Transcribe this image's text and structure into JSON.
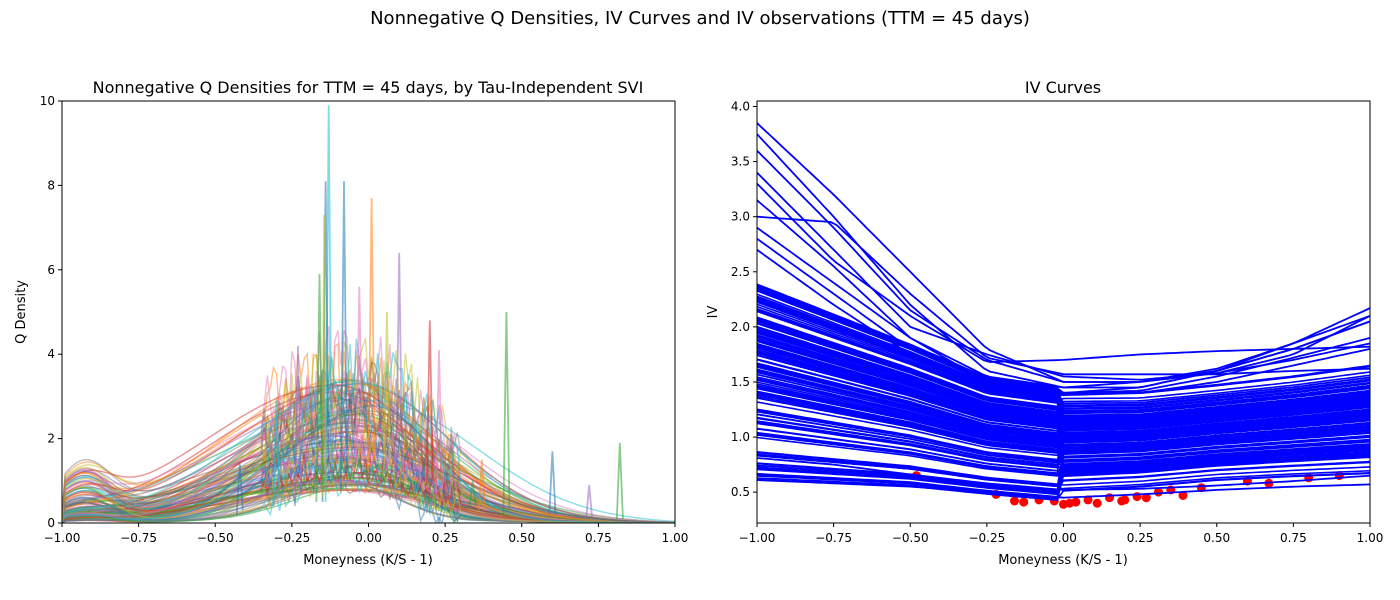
{
  "figure": {
    "suptitle": "Nonnegative Q Densities, IV Curves and IV observations (TTM = 45 days)"
  },
  "chart_data": [
    {
      "type": "line",
      "title": "Nonnegative Q Densities for TTM = 45 days, by Tau-Independent SVI",
      "xlabel": "Moneyness (K/S - 1)",
      "ylabel": "Q Density",
      "xlim": [
        -1.0,
        1.0
      ],
      "ylim": [
        0,
        10
      ],
      "xticks": [
        -1.0,
        -0.75,
        -0.5,
        -0.25,
        0.0,
        0.25,
        0.5,
        0.75,
        1.0
      ],
      "xtick_labels": [
        "−1.00",
        "−0.75",
        "−0.50",
        "−0.25",
        "0.00",
        "0.25",
        "0.50",
        "0.75",
        "1.00"
      ],
      "yticks": [
        0,
        2,
        4,
        6,
        8,
        10
      ],
      "ytick_labels": [
        "0",
        "2",
        "4",
        "6",
        "8",
        "10"
      ],
      "grid": false,
      "legend": "none",
      "line_alpha": 0.5,
      "palette": [
        "#1f77b4",
        "#ff7f0e",
        "#2ca02c",
        "#d62728",
        "#9467bd",
        "#8c564b",
        "#e377c2",
        "#7f7f7f",
        "#bcbd22",
        "#17becf"
      ],
      "smooth_series_count": 120,
      "smooth_curve_model": "skewed bell in moneyness; peak location ≈ -0.12 to 0.02, peak height ≈ 0.7 to 3.4, left-tail bump near -0.95 for some series",
      "spike_series": [
        {
          "name": "",
          "x": [
            -0.14,
            -0.13,
            -0.12
          ],
          "y": [
            0.5,
            9.9,
            1.0
          ],
          "color": "#17becf"
        },
        {
          "name": "",
          "x": [
            -0.15,
            -0.14,
            -0.13
          ],
          "y": [
            0.5,
            8.1,
            1.0
          ],
          "color": "#1f77b4"
        },
        {
          "name": "",
          "x": [
            -0.09,
            -0.08,
            -0.07
          ],
          "y": [
            0.8,
            8.1,
            1.2
          ],
          "color": "#1f77b4"
        },
        {
          "name": "",
          "x": [
            0.0,
            0.01,
            0.02
          ],
          "y": [
            1.2,
            7.7,
            1.5
          ],
          "color": "#ff7f0e"
        },
        {
          "name": "",
          "x": [
            -0.15,
            -0.145,
            -0.14
          ],
          "y": [
            0.6,
            7.3,
            0.9
          ],
          "color": "#bcbd22"
        },
        {
          "name": "",
          "x": [
            0.09,
            0.1,
            0.11
          ],
          "y": [
            1.0,
            6.4,
            1.2
          ],
          "color": "#9467bd"
        },
        {
          "name": "",
          "x": [
            -0.17,
            -0.16,
            -0.15
          ],
          "y": [
            0.5,
            5.9,
            0.9
          ],
          "color": "#2ca02c"
        },
        {
          "name": "",
          "x": [
            0.44,
            0.45,
            0.46
          ],
          "y": [
            0.2,
            5.0,
            0.3
          ],
          "color": "#2ca02c"
        },
        {
          "name": "",
          "x": [
            0.19,
            0.2,
            0.21
          ],
          "y": [
            0.9,
            4.8,
            1.0
          ],
          "color": "#d62728"
        },
        {
          "name": "",
          "x": [
            -0.24,
            -0.23,
            -0.22
          ],
          "y": [
            0.4,
            4.2,
            0.7
          ],
          "color": "#9467bd"
        },
        {
          "name": "",
          "x": [
            0.22,
            0.23,
            0.24
          ],
          "y": [
            0.7,
            4.1,
            0.8
          ],
          "color": "#e377c2"
        },
        {
          "name": "",
          "x": [
            -0.31,
            -0.3,
            -0.29
          ],
          "y": [
            0.4,
            2.9,
            0.6
          ],
          "color": "#17becf"
        },
        {
          "name": "",
          "x": [
            0.59,
            0.6,
            0.61
          ],
          "y": [
            0.2,
            1.7,
            0.2
          ],
          "color": "#1f77b4"
        },
        {
          "name": "",
          "x": [
            0.81,
            0.82,
            0.83
          ],
          "y": [
            0.1,
            1.9,
            0.1
          ],
          "color": "#2ca02c"
        },
        {
          "name": "",
          "x": [
            0.71,
            0.72,
            0.73
          ],
          "y": [
            0.1,
            0.9,
            0.1
          ],
          "color": "#9467bd"
        },
        {
          "name": "",
          "x": [
            -0.43,
            -0.42,
            -0.41
          ],
          "y": [
            0.2,
            1.4,
            0.3
          ],
          "color": "#1f77b4"
        },
        {
          "name": "",
          "x": [
            0.33,
            0.34,
            0.35
          ],
          "y": [
            0.4,
            1.0,
            0.4
          ],
          "color": "#2ca02c"
        },
        {
          "name": "",
          "x": [
            0.36,
            0.37,
            0.38
          ],
          "y": [
            0.3,
            1.5,
            0.3
          ],
          "color": "#ff7f0e"
        },
        {
          "name": "",
          "x": [
            -0.04,
            -0.03,
            -0.02
          ],
          "y": [
            1.4,
            5.6,
            1.6
          ],
          "color": "#e377c2"
        },
        {
          "name": "",
          "x": [
            0.05,
            0.06,
            0.07
          ],
          "y": [
            1.2,
            5.0,
            1.3
          ],
          "color": "#bcbd22"
        }
      ]
    },
    {
      "type": "line",
      "title": "IV Curves",
      "xlabel": "Moneyness (K/S - 1)",
      "ylabel": "IV",
      "xlim": [
        -1.0,
        1.0
      ],
      "ylim": [
        0.22,
        4.05
      ],
      "xticks": [
        -1.0,
        -0.75,
        -0.5,
        -0.25,
        0.0,
        0.25,
        0.5,
        0.75,
        1.0
      ],
      "xtick_labels": [
        "−1.00",
        "−0.75",
        "−0.50",
        "−0.25",
        "0.00",
        "0.25",
        "0.50",
        "0.75",
        "1.00"
      ],
      "yticks": [
        0.5,
        1.0,
        1.5,
        2.0,
        2.5,
        3.0,
        3.5,
        4.0
      ],
      "ytick_labels": [
        "0.5",
        "1.0",
        "1.5",
        "2.0",
        "2.5",
        "3.0",
        "3.5",
        "4.0"
      ],
      "grid": false,
      "legend": "none",
      "curve_color": "#0000ff",
      "observation_color": "#ff0000",
      "band_lower": {
        "x": [
          -1.0,
          -0.5,
          -0.25,
          0.0,
          0.25,
          0.5,
          0.75,
          1.0
        ],
        "y": [
          0.61,
          0.55,
          0.48,
          0.42,
          0.46,
          0.52,
          0.55,
          0.57
        ]
      },
      "band_upper": {
        "x": [
          -1.0,
          -0.5,
          -0.25,
          0.0,
          0.25,
          0.5,
          0.75,
          1.0
        ],
        "y": [
          2.4,
          1.85,
          1.55,
          1.45,
          1.45,
          1.52,
          1.6,
          1.7
        ]
      },
      "highlight_curves": [
        {
          "x": [
            -1.0,
            -0.75,
            -0.5,
            -0.25,
            0.0,
            0.25,
            0.5,
            0.75,
            1.0
          ],
          "y": [
            3.85,
            3.2,
            2.5,
            1.8,
            1.5,
            1.5,
            1.58,
            1.75,
            2.1
          ]
        },
        {
          "x": [
            -1.0,
            -0.75,
            -0.5,
            -0.25,
            0.0,
            0.25,
            0.5,
            0.75,
            1.0
          ],
          "y": [
            3.75,
            3.0,
            2.2,
            1.6,
            1.45,
            1.45,
            1.6,
            1.85,
            2.17
          ]
        },
        {
          "x": [
            -1.0,
            -0.75,
            -0.5,
            -0.25,
            0.0,
            0.25,
            0.5,
            0.75,
            1.0
          ],
          "y": [
            3.6,
            2.9,
            2.15,
            1.7,
            1.5,
            1.5,
            1.6,
            1.8,
            2.05
          ]
        },
        {
          "x": [
            -1.0,
            -0.75,
            -0.5,
            -0.25,
            0.0,
            0.25,
            0.5,
            0.75,
            1.0
          ],
          "y": [
            3.4,
            2.7,
            2.0,
            1.75,
            1.55,
            1.52,
            1.58,
            1.7,
            1.85
          ]
        },
        {
          "x": [
            -1.0,
            -0.75,
            -0.5,
            -0.25,
            0.0,
            0.25,
            0.5,
            0.75,
            1.0
          ],
          "y": [
            3.3,
            2.6,
            2.1,
            1.68,
            1.7,
            1.75,
            1.78,
            1.8,
            1.82
          ]
        },
        {
          "x": [
            -1.0,
            -0.75,
            -0.5,
            -0.25,
            0.0,
            0.25,
            0.5,
            0.75,
            1.0
          ],
          "y": [
            3.15,
            2.55,
            1.9,
            1.5,
            1.4,
            1.42,
            1.55,
            1.72,
            1.9
          ]
        },
        {
          "x": [
            -1.0,
            -0.75,
            -0.5,
            -0.25,
            0.0,
            0.25,
            0.5,
            0.75,
            1.0
          ],
          "y": [
            3.0,
            2.95,
            2.3,
            1.72,
            1.57,
            1.57,
            1.57,
            1.6,
            1.62
          ]
        },
        {
          "x": [
            -1.0,
            -0.75,
            -0.5,
            -0.25,
            0.0,
            0.25,
            0.5,
            0.75,
            1.0
          ],
          "y": [
            2.9,
            2.4,
            1.9,
            1.55,
            1.45,
            1.5,
            1.62,
            1.85,
            2.1
          ]
        },
        {
          "x": [
            -1.0,
            -0.75,
            -0.5,
            -0.25,
            0.0,
            0.25,
            0.5,
            0.75,
            1.0
          ],
          "y": [
            2.8,
            2.3,
            1.8,
            1.5,
            1.4,
            1.45,
            1.6,
            1.8,
            2.05
          ]
        },
        {
          "x": [
            -1.0,
            -0.75,
            -0.5,
            -0.25,
            0.0,
            0.25,
            0.5,
            0.75,
            1.0
          ],
          "y": [
            2.7,
            2.2,
            1.75,
            1.45,
            1.38,
            1.4,
            1.5,
            1.65,
            1.8
          ]
        },
        {
          "x": [
            -1.0,
            -0.75,
            -0.5,
            -0.25,
            0.0,
            0.25,
            0.5,
            0.75,
            1.0
          ],
          "y": [
            0.81,
            0.75,
            0.66,
            0.58,
            0.52,
            0.53,
            0.56,
            0.6,
            0.65
          ]
        },
        {
          "x": [
            -1.0,
            -0.75,
            -0.5,
            -0.25,
            0.0,
            0.25,
            0.5,
            0.75,
            1.0
          ],
          "y": [
            0.61,
            0.58,
            0.55,
            0.5,
            0.45,
            0.48,
            0.52,
            0.55,
            0.57
          ]
        }
      ],
      "band_curve_count": 160,
      "observations": {
        "x": [
          -0.48,
          -0.22,
          -0.16,
          -0.13,
          -0.08,
          -0.03,
          0.0,
          0.02,
          0.04,
          0.08,
          0.11,
          0.15,
          0.19,
          0.2,
          0.24,
          0.27,
          0.31,
          0.35,
          0.39,
          0.45,
          0.6,
          0.67,
          0.8,
          0.9
        ],
        "y": [
          0.65,
          0.48,
          0.42,
          0.41,
          0.43,
          0.42,
          0.39,
          0.4,
          0.41,
          0.43,
          0.4,
          0.45,
          0.42,
          0.43,
          0.46,
          0.45,
          0.5,
          0.52,
          0.47,
          0.54,
          0.6,
          0.58,
          0.63,
          0.65
        ]
      }
    }
  ]
}
